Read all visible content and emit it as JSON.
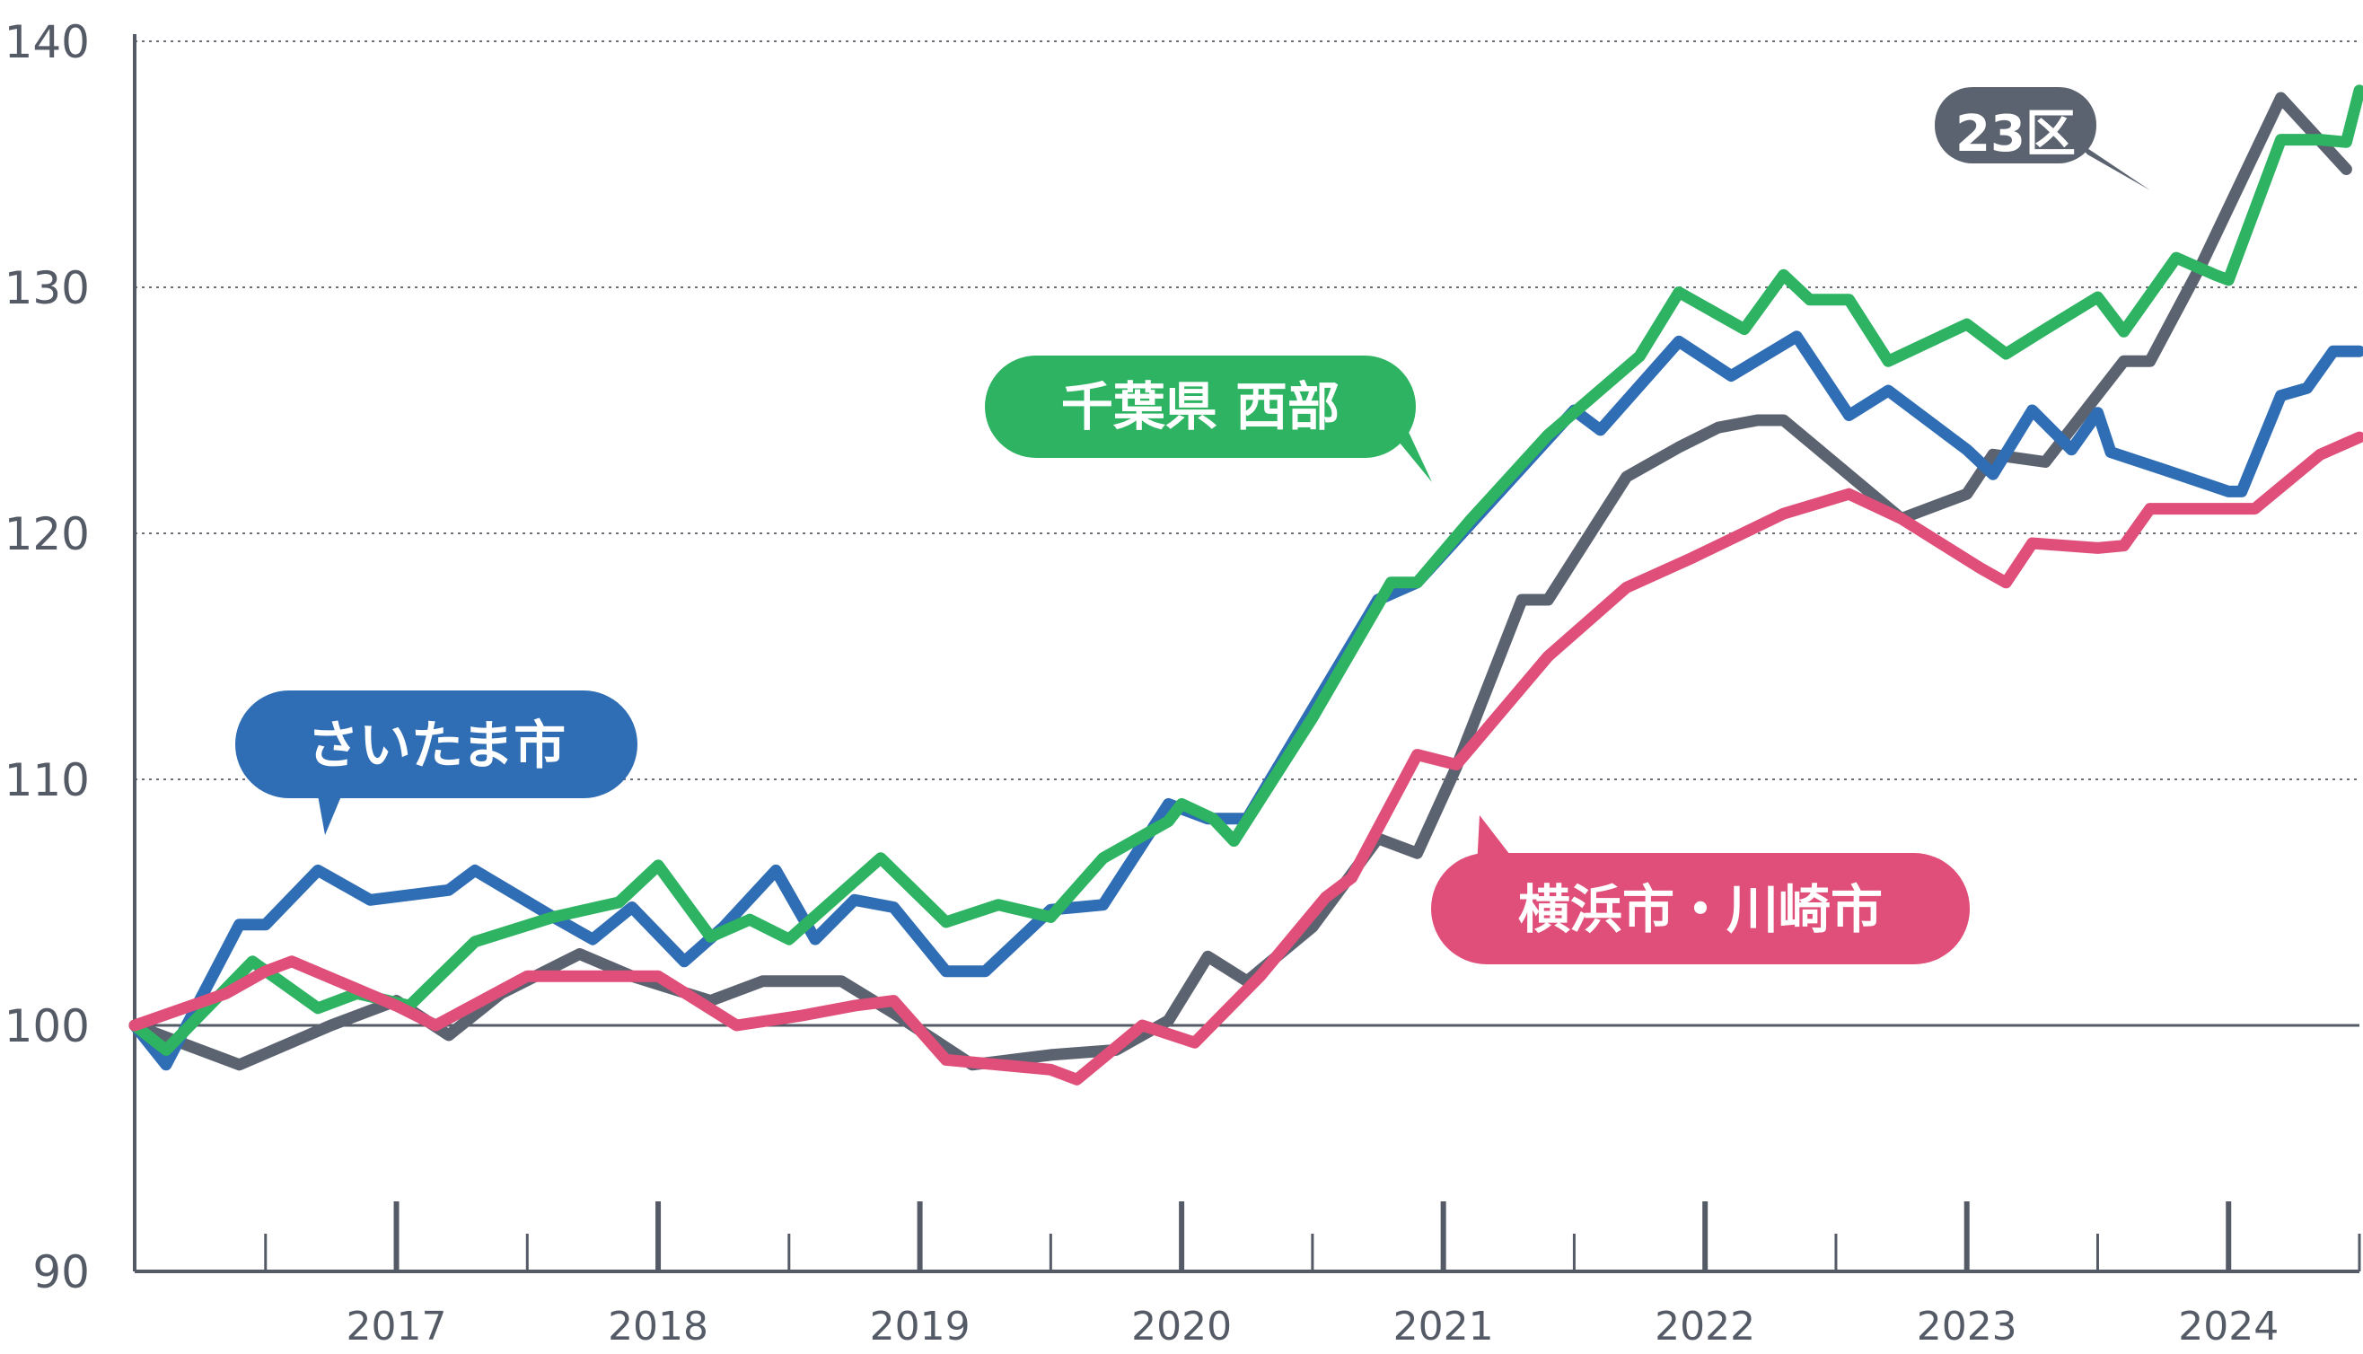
{
  "chart_data": {
    "type": "line",
    "title": "",
    "xlabel": "",
    "ylabel": "",
    "ylim": [
      90,
      140
    ],
    "yticks": [
      90,
      100,
      110,
      120,
      130,
      140
    ],
    "baseline": 100,
    "grid": true,
    "xlim": [
      2016.0,
      2024.5
    ],
    "year_labels": [
      "2017",
      "2018",
      "2019",
      "2020",
      "2021",
      "2022",
      "2023",
      "2024"
    ],
    "series": [
      {
        "name": "23区",
        "color": "#5c6370",
        "points": [
          [
            2016.0,
            100.0
          ],
          [
            2016.4,
            98.4
          ],
          [
            2016.75,
            100.0
          ],
          [
            2017.0,
            101.0
          ],
          [
            2017.2,
            99.6
          ],
          [
            2017.4,
            101.3
          ],
          [
            2017.7,
            102.9
          ],
          [
            2017.9,
            102.0
          ],
          [
            2018.2,
            101.0
          ],
          [
            2018.4,
            101.8
          ],
          [
            2018.7,
            101.8
          ],
          [
            2018.9,
            100.5
          ],
          [
            2019.2,
            98.4
          ],
          [
            2019.5,
            98.8
          ],
          [
            2019.75,
            99.0
          ],
          [
            2019.95,
            100.2
          ],
          [
            2020.1,
            102.8
          ],
          [
            2020.25,
            101.8
          ],
          [
            2020.5,
            104.0
          ],
          [
            2020.75,
            107.6
          ],
          [
            2020.9,
            107.0
          ],
          [
            2021.05,
            110.5
          ],
          [
            2021.3,
            117.3
          ],
          [
            2021.4,
            117.3
          ],
          [
            2021.7,
            122.3
          ],
          [
            2021.9,
            123.5
          ],
          [
            2022.05,
            124.3
          ],
          [
            2022.2,
            124.6
          ],
          [
            2022.3,
            124.6
          ],
          [
            2022.75,
            120.6
          ],
          [
            2023.0,
            121.6
          ],
          [
            2023.1,
            123.2
          ],
          [
            2023.3,
            122.9
          ],
          [
            2023.6,
            127.0
          ],
          [
            2023.7,
            127.0
          ],
          [
            2023.9,
            131.0
          ],
          [
            2024.2,
            137.7
          ],
          [
            2024.45,
            134.8
          ]
        ]
      },
      {
        "name": "さいたま市",
        "color": "#2f6db5",
        "points": [
          [
            2016.0,
            100.0
          ],
          [
            2016.12,
            98.4
          ],
          [
            2016.4,
            104.1
          ],
          [
            2016.5,
            104.1
          ],
          [
            2016.7,
            106.3
          ],
          [
            2016.9,
            105.1
          ],
          [
            2017.2,
            105.5
          ],
          [
            2017.3,
            106.3
          ],
          [
            2017.6,
            104.4
          ],
          [
            2017.75,
            103.5
          ],
          [
            2017.9,
            104.8
          ],
          [
            2018.1,
            102.6
          ],
          [
            2018.25,
            104.0
          ],
          [
            2018.45,
            106.3
          ],
          [
            2018.6,
            103.5
          ],
          [
            2018.75,
            105.1
          ],
          [
            2018.9,
            104.8
          ],
          [
            2019.1,
            102.2
          ],
          [
            2019.25,
            102.2
          ],
          [
            2019.5,
            104.7
          ],
          [
            2019.7,
            104.9
          ],
          [
            2019.95,
            109.0
          ],
          [
            2020.1,
            108.4
          ],
          [
            2020.25,
            108.4
          ],
          [
            2020.75,
            117.3
          ],
          [
            2020.9,
            118.0
          ],
          [
            2021.5,
            125.0
          ],
          [
            2021.6,
            124.2
          ],
          [
            2021.9,
            127.8
          ],
          [
            2022.1,
            126.4
          ],
          [
            2022.35,
            128.0
          ],
          [
            2022.55,
            124.8
          ],
          [
            2022.7,
            125.8
          ],
          [
            2023.0,
            123.4
          ],
          [
            2023.1,
            122.4
          ],
          [
            2023.25,
            125.0
          ],
          [
            2023.4,
            123.4
          ],
          [
            2023.5,
            124.9
          ],
          [
            2023.55,
            123.3
          ],
          [
            2023.75,
            122.6
          ],
          [
            2024.0,
            121.7
          ],
          [
            2024.05,
            121.7
          ],
          [
            2024.2,
            125.6
          ],
          [
            2024.3,
            125.9
          ],
          [
            2024.4,
            127.4
          ],
          [
            2024.5,
            127.4
          ]
        ]
      },
      {
        "name": "千葉県 西部",
        "color": "#2db362",
        "points": [
          [
            2016.0,
            100.0
          ],
          [
            2016.12,
            99.0
          ],
          [
            2016.45,
            102.6
          ],
          [
            2016.7,
            100.7
          ],
          [
            2016.85,
            101.3
          ],
          [
            2017.05,
            100.8
          ],
          [
            2017.3,
            103.4
          ],
          [
            2017.6,
            104.4
          ],
          [
            2017.85,
            105.0
          ],
          [
            2018.0,
            106.5
          ],
          [
            2018.2,
            103.6
          ],
          [
            2018.35,
            104.3
          ],
          [
            2018.5,
            103.5
          ],
          [
            2018.85,
            106.8
          ],
          [
            2019.1,
            104.2
          ],
          [
            2019.3,
            104.9
          ],
          [
            2019.5,
            104.4
          ],
          [
            2019.7,
            106.8
          ],
          [
            2019.95,
            108.3
          ],
          [
            2020.0,
            109.0
          ],
          [
            2020.12,
            108.4
          ],
          [
            2020.2,
            107.5
          ],
          [
            2020.5,
            112.5
          ],
          [
            2020.8,
            118.0
          ],
          [
            2020.9,
            118.0
          ],
          [
            2021.1,
            120.5
          ],
          [
            2021.4,
            124.0
          ],
          [
            2021.75,
            127.2
          ],
          [
            2021.9,
            129.8
          ],
          [
            2022.15,
            128.3
          ],
          [
            2022.3,
            130.5
          ],
          [
            2022.4,
            129.5
          ],
          [
            2022.55,
            129.5
          ],
          [
            2022.7,
            127.0
          ],
          [
            2023.0,
            128.5
          ],
          [
            2023.15,
            127.3
          ],
          [
            2023.3,
            128.3
          ],
          [
            2023.5,
            129.6
          ],
          [
            2023.6,
            128.2
          ],
          [
            2023.8,
            131.2
          ],
          [
            2023.95,
            130.5
          ],
          [
            2024.0,
            130.3
          ],
          [
            2024.2,
            136.0
          ],
          [
            2024.35,
            136.0
          ],
          [
            2024.45,
            135.9
          ],
          [
            2024.5,
            138.0
          ]
        ]
      },
      {
        "name": "横浜市・川崎市",
        "color": "#e04f7a",
        "points": [
          [
            2016.0,
            100.0
          ],
          [
            2016.35,
            101.3
          ],
          [
            2016.5,
            102.2
          ],
          [
            2016.6,
            102.6
          ],
          [
            2016.8,
            101.7
          ],
          [
            2017.0,
            100.8
          ],
          [
            2017.15,
            100.0
          ],
          [
            2017.5,
            102.0
          ],
          [
            2017.7,
            102.0
          ],
          [
            2018.0,
            102.0
          ],
          [
            2018.3,
            100.0
          ],
          [
            2018.55,
            100.4
          ],
          [
            2018.75,
            100.8
          ],
          [
            2018.9,
            101.0
          ],
          [
            2019.1,
            98.6
          ],
          [
            2019.5,
            98.2
          ],
          [
            2019.6,
            97.8
          ],
          [
            2019.85,
            100.0
          ],
          [
            2020.05,
            99.3
          ],
          [
            2020.3,
            102.0
          ],
          [
            2020.55,
            105.2
          ],
          [
            2020.65,
            106.0
          ],
          [
            2020.9,
            111.0
          ],
          [
            2021.05,
            110.6
          ],
          [
            2021.4,
            115.0
          ],
          [
            2021.7,
            117.8
          ],
          [
            2021.95,
            119.0
          ],
          [
            2022.3,
            120.8
          ],
          [
            2022.55,
            121.6
          ],
          [
            2022.75,
            120.6
          ],
          [
            2023.05,
            118.6
          ],
          [
            2023.15,
            118.0
          ],
          [
            2023.25,
            119.6
          ],
          [
            2023.5,
            119.4
          ],
          [
            2023.6,
            119.5
          ],
          [
            2023.7,
            121.0
          ],
          [
            2024.0,
            121.0
          ],
          [
            2024.1,
            121.0
          ],
          [
            2024.35,
            123.2
          ],
          [
            2024.5,
            123.9
          ]
        ]
      }
    ],
    "annotations": [
      {
        "series": "23区",
        "text": "23区",
        "color": "#5c6370"
      },
      {
        "series": "千葉県 西部",
        "text": "千葉県 西部",
        "color": "#2db362"
      },
      {
        "series": "さいたま市",
        "text": "さいたま市",
        "color": "#2f6db5"
      },
      {
        "series": "横浜市・川崎市",
        "text": "横浜市・川崎市",
        "color": "#e04f7a"
      }
    ]
  }
}
